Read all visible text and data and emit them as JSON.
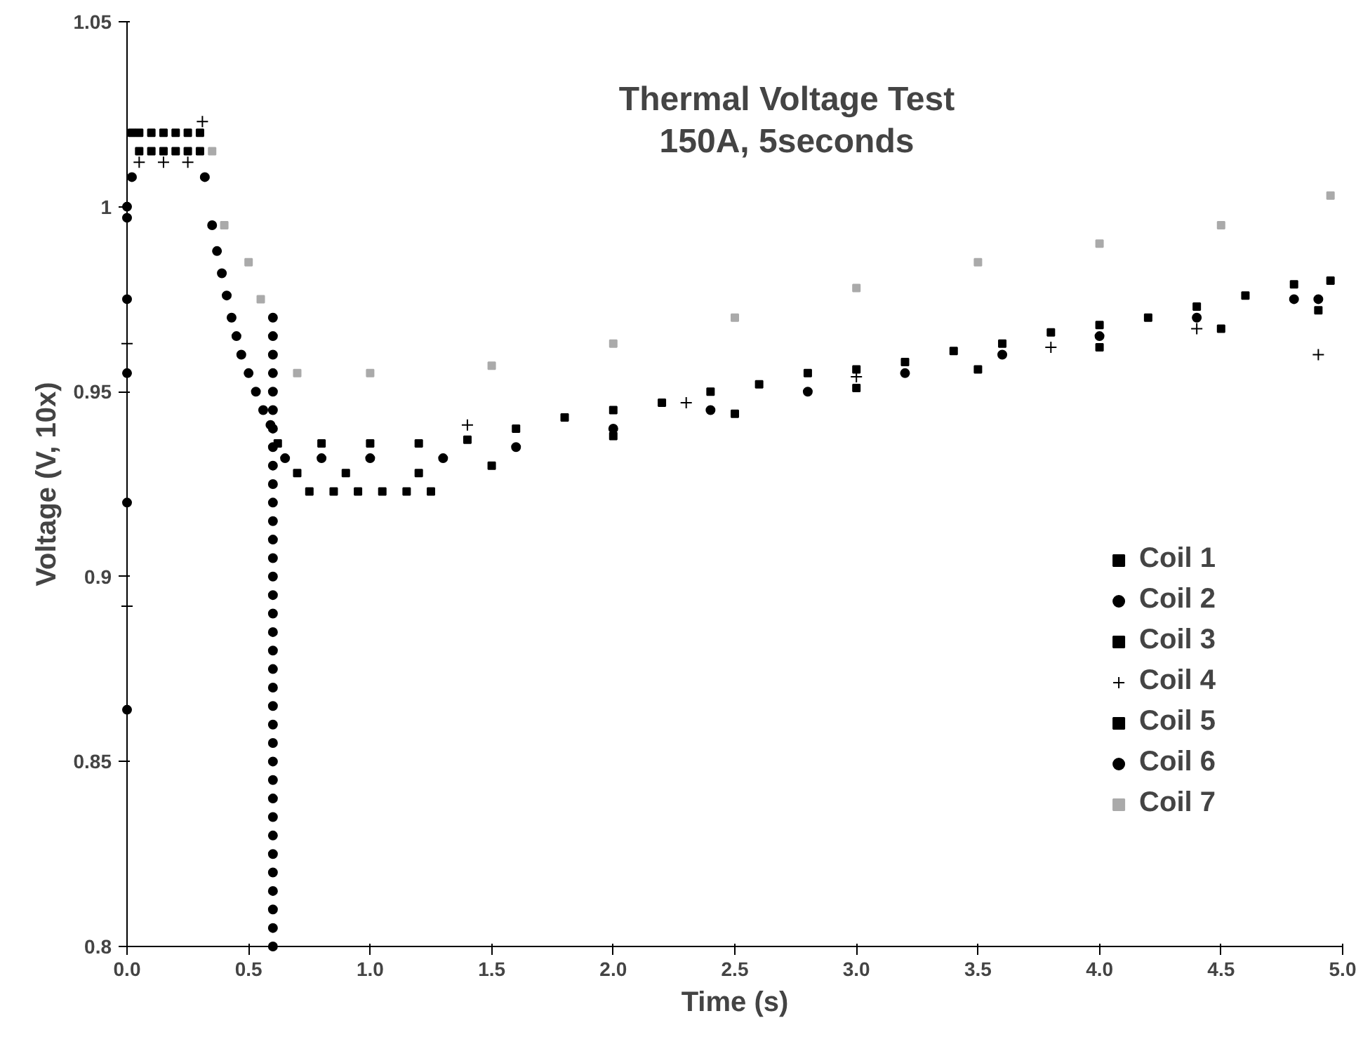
{
  "chart_data": {
    "type": "scatter",
    "title": "Thermal Voltage Test",
    "subtitle": "150A, 5seconds",
    "xlabel": "Time (s)",
    "ylabel": "Voltage (V, 10x)",
    "xlim": [
      0,
      5
    ],
    "ylim": [
      0.8,
      1.05
    ],
    "xticks": [
      {
        "value": 0,
        "label": "0.0"
      },
      {
        "value": 0.5,
        "label": "0.5"
      },
      {
        "value": 1,
        "label": "1.0"
      },
      {
        "value": 1.5,
        "label": "1.5"
      },
      {
        "value": 2,
        "label": "2.0"
      },
      {
        "value": 2.5,
        "label": "2.5"
      },
      {
        "value": 3,
        "label": "3.0"
      },
      {
        "value": 3.5,
        "label": "3.5"
      },
      {
        "value": 4,
        "label": "4.0"
      },
      {
        "value": 4.5,
        "label": "4.5"
      },
      {
        "value": 5,
        "label": "5.0"
      }
    ],
    "yticks": [
      0.8,
      0.85,
      0.9,
      0.95,
      1,
      1.05
    ],
    "grid": false,
    "legend": "right",
    "series": [
      {
        "name": "Coil 1",
        "color": "#000000",
        "marker": "square",
        "x": [
          0.02,
          0.05,
          0.1,
          0.15,
          0.2,
          0.25,
          0.3,
          0.62,
          0.8,
          1.0,
          1.2,
          1.4,
          1.6,
          1.8,
          2.0,
          2.2,
          2.4,
          2.6,
          2.8,
          3.0,
          3.2,
          3.4,
          3.6,
          3.8,
          4.0,
          4.2,
          4.4,
          4.6,
          4.8,
          4.95
        ],
        "values": [
          1.02,
          1.02,
          1.02,
          1.02,
          1.02,
          1.02,
          1.02,
          0.936,
          0.936,
          0.936,
          0.936,
          0.937,
          0.94,
          0.943,
          0.945,
          0.947,
          0.95,
          0.952,
          0.955,
          0.956,
          0.958,
          0.961,
          0.963,
          0.966,
          0.968,
          0.97,
          0.973,
          0.976,
          0.979,
          0.98
        ]
      },
      {
        "name": "Coil 2",
        "color": "#000000",
        "marker": "circle",
        "x": [
          0.02,
          0.32,
          0.35,
          0.37,
          0.39,
          0.41,
          0.43,
          0.45,
          0.47,
          0.5,
          0.53,
          0.56,
          0.59,
          0.65,
          0.8,
          1.0,
          1.3,
          1.6,
          2.0,
          2.4,
          2.8,
          3.2,
          3.6,
          4.0,
          4.4,
          4.8,
          4.9
        ],
        "values": [
          1.008,
          1.008,
          0.995,
          0.988,
          0.982,
          0.976,
          0.97,
          0.965,
          0.96,
          0.955,
          0.95,
          0.945,
          0.941,
          0.932,
          0.932,
          0.932,
          0.932,
          0.935,
          0.94,
          0.945,
          0.95,
          0.955,
          0.96,
          0.965,
          0.97,
          0.975,
          0.975
        ]
      },
      {
        "name": "Coil 3",
        "color": "#000000",
        "marker": "square",
        "x": [
          0.05,
          0.1,
          0.15,
          0.2,
          0.25,
          0.3,
          0.7,
          0.9,
          1.2,
          1.5,
          2.0,
          2.5,
          3.0,
          3.5,
          4.0,
          4.5,
          4.9
        ],
        "values": [
          1.015,
          1.015,
          1.015,
          1.015,
          1.015,
          1.015,
          0.928,
          0.928,
          0.928,
          0.93,
          0.938,
          0.944,
          0.951,
          0.956,
          0.962,
          0.967,
          0.972
        ]
      },
      {
        "name": "Coil 4",
        "color": "#000000",
        "marker": "cross",
        "x": [
          0.0,
          0.0,
          0.31,
          0.05,
          0.15,
          0.25,
          1.4,
          2.3,
          3.0,
          3.8,
          4.4,
          4.9
        ],
        "values": [
          0.963,
          0.892,
          1.023,
          1.012,
          1.012,
          1.012,
          0.941,
          0.947,
          0.954,
          0.962,
          0.967,
          0.96
        ]
      },
      {
        "name": "Coil 5",
        "color": "#000000",
        "marker": "square",
        "x": [
          0.75,
          0.85,
          0.95,
          1.05,
          1.15,
          1.25
        ],
        "values": [
          0.923,
          0.923,
          0.923,
          0.923,
          0.923,
          0.923
        ]
      },
      {
        "name": "Coil 6",
        "color": "#000000",
        "marker": "circle",
        "x": [
          0.0,
          0.0,
          0.0,
          0.0,
          0.0,
          0.0,
          0.6,
          0.6,
          0.6,
          0.6,
          0.6,
          0.6,
          0.6,
          0.6,
          0.6,
          0.6,
          0.6,
          0.6,
          0.6,
          0.6,
          0.6,
          0.6,
          0.6,
          0.6,
          0.6,
          0.6,
          0.6,
          0.6,
          0.6,
          0.6,
          0.6,
          0.6,
          0.6,
          0.6,
          0.6,
          0.6,
          0.6,
          0.6,
          0.6,
          0.6,
          0.6
        ],
        "values": [
          1.0,
          0.997,
          0.975,
          0.955,
          0.92,
          0.864,
          0.8,
          0.805,
          0.81,
          0.815,
          0.82,
          0.825,
          0.83,
          0.835,
          0.84,
          0.845,
          0.85,
          0.855,
          0.86,
          0.865,
          0.87,
          0.875,
          0.88,
          0.885,
          0.89,
          0.895,
          0.9,
          0.905,
          0.91,
          0.915,
          0.92,
          0.925,
          0.93,
          0.935,
          0.94,
          0.945,
          0.95,
          0.955,
          0.96,
          0.965,
          0.97
        ]
      },
      {
        "name": "Coil 7",
        "color": "#aaaaaa",
        "marker": "square",
        "x": [
          0.35,
          0.4,
          0.5,
          0.55,
          0.7,
          1.0,
          1.5,
          2.0,
          2.5,
          3.0,
          3.5,
          4.0,
          4.5,
          4.95
        ],
        "values": [
          1.015,
          0.995,
          0.985,
          0.975,
          0.955,
          0.955,
          0.957,
          0.963,
          0.97,
          0.978,
          0.985,
          0.99,
          0.995,
          1.003
        ]
      }
    ]
  }
}
